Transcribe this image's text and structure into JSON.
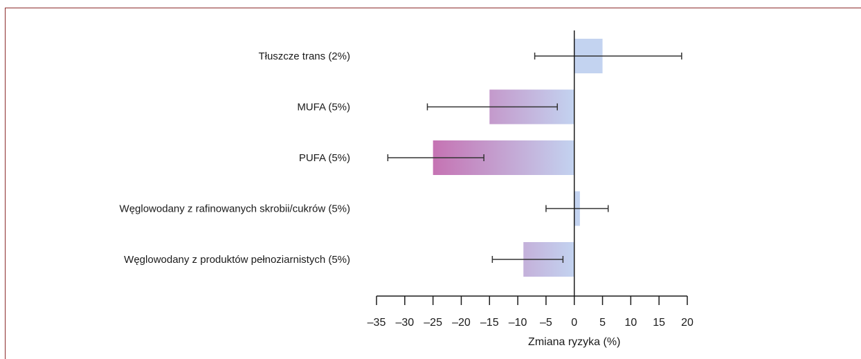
{
  "chart_data": {
    "type": "bar",
    "orientation": "horizontal",
    "categories": [
      "Tłuszcze trans (2%)",
      "MUFA (5%)",
      "PUFA (5%)",
      "Węglowodany z rafinowanych skrobii/cukrów (5%)",
      "Węglowodany z produktów pełnoziarnistych (5%)"
    ],
    "values": [
      5,
      -15,
      -25,
      1,
      -9
    ],
    "error_low": [
      -7,
      -26,
      -33,
      -5,
      -14.5
    ],
    "error_high": [
      19,
      -3,
      -16,
      6,
      -2
    ],
    "xlabel": "Zmiana ryzyka (%)",
    "xlim": [
      -35,
      20
    ],
    "xticks": [
      -35,
      -30,
      -25,
      -20,
      -15,
      -10,
      -5,
      0,
      5,
      10,
      15,
      20
    ],
    "xtick_labels": [
      "–35",
      "–30",
      "–25",
      "–20",
      "–15",
      "–10",
      "–5",
      "0",
      "5",
      "10",
      "15",
      "20"
    ],
    "grid": false,
    "legend": "none",
    "colors": {
      "bar_light": "#c3d3f0",
      "bar_strong": "#c573b3",
      "error_bar": "#333333",
      "axis": "#1a1a1a",
      "frame": "#8b2a2a"
    }
  }
}
